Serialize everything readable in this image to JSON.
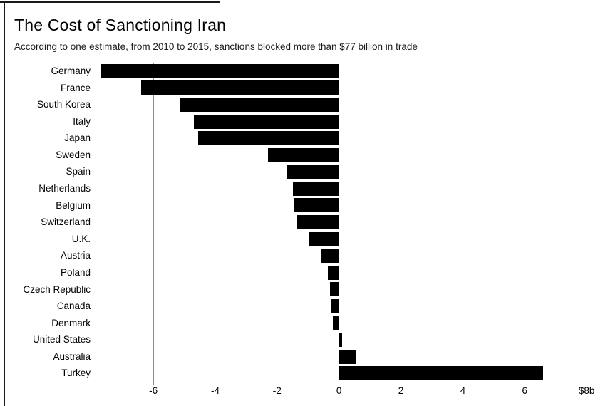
{
  "header": {
    "title": "The Cost of Sanctioning Iran",
    "subtitle": "According to one estimate, from 2010 to 2015, sanctions blocked more than $77 billion in trade"
  },
  "colors": {
    "bar": "#000000",
    "gridline": "#8c8c8c",
    "zero_line": "#000000",
    "text": "#000000",
    "background": "#ffffff"
  },
  "chart_data": {
    "type": "bar",
    "orientation": "horizontal",
    "title": "The Cost of Sanctioning Iran",
    "subtitle": "According to one estimate, from 2010 to 2015, sanctions blocked more than $77 billion in trade",
    "value_unit": "$ billions",
    "categories": [
      "Germany",
      "France",
      "South Korea",
      "Italy",
      "Japan",
      "Sweden",
      "Spain",
      "Netherlands",
      "Belgium",
      "Switzerland",
      "U.K.",
      "Austria",
      "Poland",
      "Czech Republic",
      "Canada",
      "Denmark",
      "United States",
      "Australia",
      "Turkey"
    ],
    "values": [
      -7.7,
      -6.4,
      -5.15,
      -4.7,
      -4.55,
      -2.3,
      -1.7,
      -1.5,
      -1.45,
      -1.35,
      -0.95,
      -0.6,
      -0.35,
      -0.3,
      -0.25,
      -0.2,
      0.1,
      0.55,
      6.6
    ],
    "x_ticks": [
      {
        "value": -6,
        "label": "-6"
      },
      {
        "value": -4,
        "label": "-4"
      },
      {
        "value": -2,
        "label": "-2"
      },
      {
        "value": 0,
        "label": "0"
      },
      {
        "value": 2,
        "label": "2"
      },
      {
        "value": 4,
        "label": "4"
      },
      {
        "value": 6,
        "label": "6"
      },
      {
        "value": 8,
        "label": "$8b"
      }
    ],
    "xlim": [
      -7.89,
      8.48
    ],
    "grid": "vertical",
    "legend": "none"
  }
}
